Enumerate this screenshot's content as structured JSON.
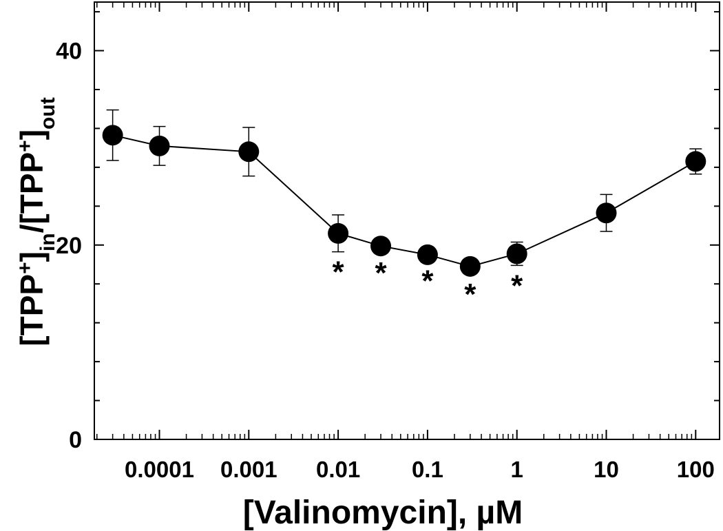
{
  "chart_data": {
    "type": "scatter",
    "x_scale": "log",
    "xlim": [
      3e-05,
      200
    ],
    "ylim": [
      0,
      45
    ],
    "x_ticks": [
      0.0001,
      0.001,
      0.01,
      0.1,
      1,
      10,
      100
    ],
    "x_tick_labels": [
      "0.0001",
      "0.001",
      "0.01",
      "0.1",
      "1",
      "10",
      "100"
    ],
    "y_ticks": [
      0,
      20,
      40
    ],
    "y_tick_labels": [
      "0",
      "20",
      "40"
    ],
    "y_minor_step": 4,
    "grid": false,
    "legend": "none",
    "xlabel": "[Valinomycin], µM",
    "ylabel": {
      "parts": [
        {
          "text": "[TPP",
          "style": "normal"
        },
        {
          "text": "+",
          "style": "sup"
        },
        {
          "text": "]",
          "style": "normal"
        },
        {
          "text": "in",
          "style": "sub"
        },
        {
          "text": "/[TPP",
          "style": "normal"
        },
        {
          "text": "+",
          "style": "sup"
        },
        {
          "text": "]",
          "style": "normal"
        },
        {
          "text": "out",
          "style": "sub"
        }
      ]
    },
    "marker_color": "#000000",
    "significance_marker": "*",
    "series": [
      {
        "x": [
          3e-05,
          0.0001,
          0.001,
          0.01,
          0.03,
          0.1,
          0.3,
          1,
          10,
          100
        ],
        "y": [
          31.3,
          30.2,
          29.6,
          21.2,
          19.9,
          19.0,
          17.8,
          19.1,
          23.3,
          28.6
        ],
        "err": [
          2.6,
          2.0,
          2.5,
          1.9,
          0.7,
          0.6,
          0.8,
          1.2,
          1.9,
          1.3
        ],
        "significant": [
          false,
          false,
          false,
          true,
          true,
          true,
          true,
          true,
          false,
          false
        ]
      }
    ]
  }
}
